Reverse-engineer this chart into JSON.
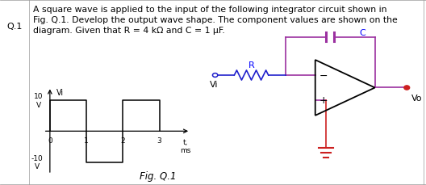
{
  "title_text": "A square wave is applied to the input of the following integrator circuit shown in\nFig. Q.1. Develop the output wave shape. The component values are shown on the\ndiagram. Given that R = 4 kΩ and C = 1 μF.",
  "question_label": "Q.1",
  "fig_label": "Fig. Q.1",
  "square_wave": {
    "x": [
      0,
      0,
      1,
      1,
      2,
      2,
      3,
      3
    ],
    "y": [
      0,
      10,
      10,
      -10,
      -10,
      10,
      10,
      0
    ]
  },
  "axis_label_x": "t,\nms",
  "axis_label_y": "Vi",
  "x_ticks": [
    0,
    1,
    2,
    3
  ],
  "ylim": [
    -15,
    15
  ],
  "xlim": [
    -0.2,
    4.0
  ],
  "circuit_color": "#9b30a0",
  "resistor_color": "#2020cc",
  "opamp_color": "#000000",
  "ground_color": "#cc2020",
  "output_dot_color": "#cc2020",
  "R_label": "R",
  "C_label": "C",
  "Vi_label": "Vi",
  "Vo_label": "Vo",
  "background_color": "#ffffff",
  "text_color": "#000000",
  "border_color": "#999999"
}
